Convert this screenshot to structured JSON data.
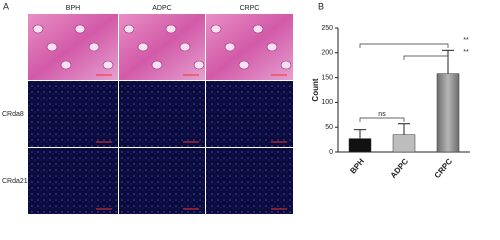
{
  "panel_a": {
    "label": "A",
    "columns": [
      "BPH",
      "ADPC",
      "CRPC"
    ],
    "rows": [
      "CRda8",
      "CRda21"
    ]
  },
  "chart_data": {
    "type": "bar",
    "panel_label": "B",
    "y_label": "Count",
    "categories": [
      "BPH",
      "ADPC",
      "CRPC"
    ],
    "values": [
      27,
      35,
      158
    ],
    "errors": [
      18,
      22,
      47
    ],
    "colors": [
      "#111111",
      "#bdbdbd",
      "#8a8a8a"
    ],
    "ylim": [
      0,
      250
    ],
    "yticks": [
      0,
      50,
      100,
      150,
      200,
      250
    ],
    "annotations": [
      {
        "label": "**",
        "groups": [
          "BPH",
          "CRPC"
        ]
      },
      {
        "label": "**",
        "groups": [
          "ADPC",
          "CRPC"
        ]
      },
      {
        "label": "ns",
        "groups": [
          "BPH",
          "ADPC"
        ]
      }
    ]
  }
}
